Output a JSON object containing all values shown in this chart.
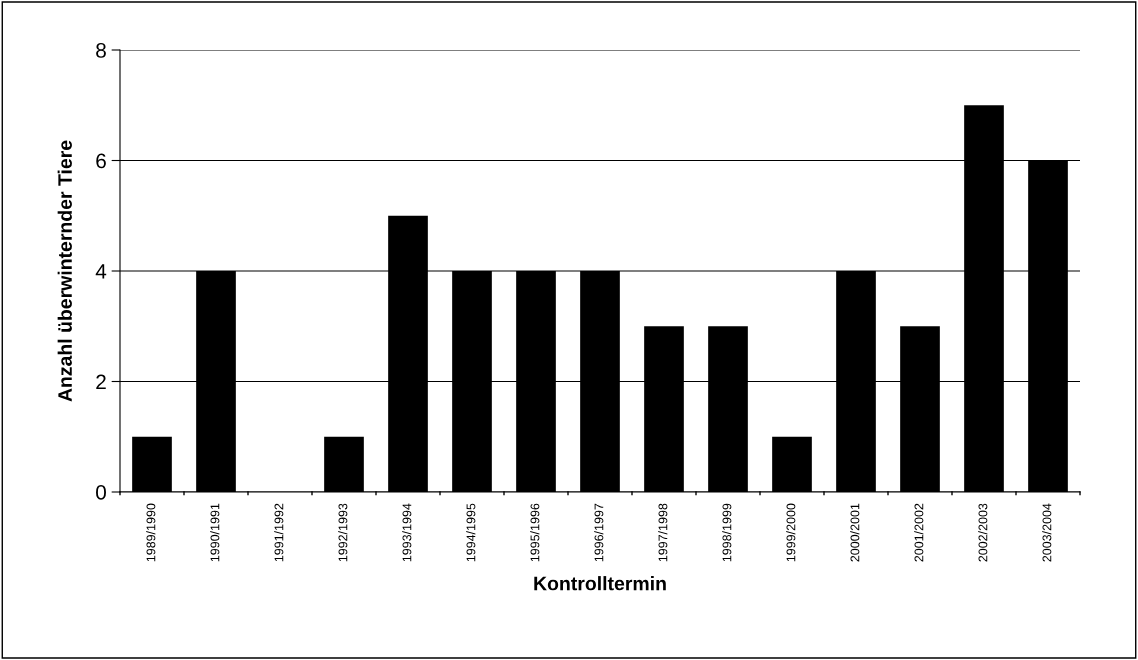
{
  "chart_data": {
    "type": "bar",
    "xlabel": "Kontrolltermin",
    "ylabel": "Anzahl überwinternder Tiere",
    "categories": [
      "1989/1990",
      "1990/1991",
      "1991/1992",
      "1992/1993",
      "1993/1994",
      "1994/1995",
      "1995/1996",
      "1996/1997",
      "1997/1998",
      "1998/1999",
      "1999/2000",
      "2000/2001",
      "2001/2002",
      "2002/2003",
      "2003/2004"
    ],
    "values": [
      1,
      4,
      0,
      1,
      5,
      4,
      4,
      4,
      3,
      3,
      1,
      4,
      3,
      7,
      6
    ],
    "color": "#000000",
    "ylim": [
      0,
      8
    ],
    "yticks": [
      0,
      2,
      4,
      6,
      8
    ],
    "grid": "y",
    "legend": false
  }
}
